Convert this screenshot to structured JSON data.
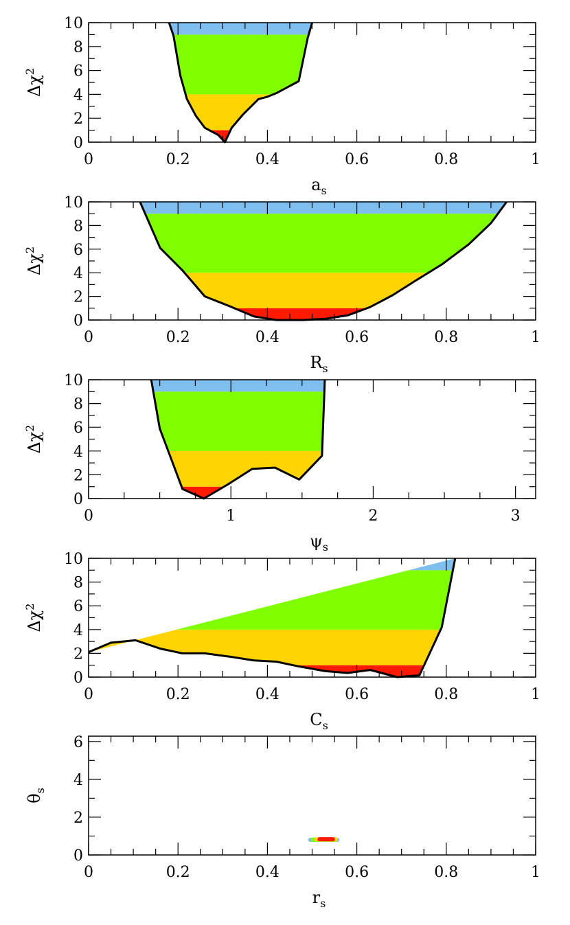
{
  "colors": {
    "band_0_1": "#ff1a00",
    "band_1_4": "#ffd400",
    "band_4_9": "#80ff00",
    "band_9_10": "#7fbfef"
  },
  "chart_data": [
    {
      "type": "area",
      "xlabel": "a_s",
      "xlabel_main": "a",
      "xlabel_sub": "s",
      "ylabel": "Δχ²",
      "ylabel_main": "Δχ",
      "ylabel_sup": "2",
      "xlim": [
        0,
        1
      ],
      "ylim": [
        0,
        10
      ],
      "xticks": [
        0,
        0.2,
        0.4,
        0.6,
        0.8,
        1
      ],
      "xtick_labels": [
        "0",
        "0.2",
        "0.4",
        "0.6",
        "0.8",
        "1"
      ],
      "yticks": [
        0,
        2,
        4,
        6,
        8,
        10
      ],
      "ytick_labels": [
        "0",
        "2",
        "4",
        "6",
        "8",
        "10"
      ],
      "bands": [
        1,
        4,
        9,
        10
      ],
      "curve": {
        "x": [
          0.18,
          0.19,
          0.205,
          0.22,
          0.24,
          0.26,
          0.29,
          0.305,
          0.32,
          0.345,
          0.38,
          0.4,
          0.42,
          0.47,
          0.49,
          0.5
        ],
        "y": [
          10,
          8.9,
          5.6,
          3.6,
          2.2,
          1.2,
          0.6,
          0.0,
          1.2,
          2.3,
          3.6,
          3.8,
          4.1,
          5.1,
          8.7,
          10
        ]
      }
    },
    {
      "type": "area",
      "xlabel": "R_s",
      "xlabel_main": "R",
      "xlabel_sub": "s",
      "ylabel": "Δχ²",
      "ylabel_main": "Δχ",
      "ylabel_sup": "2",
      "xlim": [
        0,
        1
      ],
      "ylim": [
        0,
        10
      ],
      "xticks": [
        0,
        0.2,
        0.4,
        0.6,
        0.8,
        1
      ],
      "xtick_labels": [
        "0",
        "0.2",
        "0.4",
        "0.6",
        "0.8",
        "1"
      ],
      "yticks": [
        0,
        2,
        4,
        6,
        8,
        10
      ],
      "ytick_labels": [
        "0",
        "2",
        "4",
        "6",
        "8",
        "10"
      ],
      "bands": [
        1,
        4,
        9,
        10
      ],
      "curve": {
        "x": [
          0.115,
          0.16,
          0.21,
          0.26,
          0.32,
          0.37,
          0.42,
          0.48,
          0.53,
          0.58,
          0.63,
          0.68,
          0.73,
          0.79,
          0.85,
          0.9,
          0.935
        ],
        "y": [
          10,
          6.1,
          4.2,
          2.0,
          1.1,
          0.3,
          0.0,
          0.0,
          0.1,
          0.4,
          1.1,
          2.1,
          3.3,
          4.7,
          6.4,
          8.2,
          10
        ]
      }
    },
    {
      "type": "area",
      "xlabel": "ψ_s",
      "xlabel_main": "ψ",
      "xlabel_sub": "s",
      "ylabel": "Δχ²",
      "ylabel_main": "Δχ",
      "ylabel_sup": "2",
      "xlim": [
        0,
        3.1416
      ],
      "ylim": [
        0,
        10
      ],
      "xticks": [
        0,
        1,
        2,
        3
      ],
      "xtick_labels": [
        "0",
        "1",
        "2",
        "3"
      ],
      "yticks": [
        0,
        2,
        4,
        6,
        8,
        10
      ],
      "ytick_labels": [
        "0",
        "2",
        "4",
        "6",
        "8",
        "10"
      ],
      "bands": [
        1,
        4,
        9,
        10
      ],
      "curve": {
        "x": [
          0.44,
          0.5,
          0.66,
          0.81,
          0.98,
          1.15,
          1.31,
          1.48,
          1.64,
          1.66
        ],
        "y": [
          10,
          5.9,
          0.8,
          0.0,
          1.2,
          2.5,
          2.6,
          1.6,
          3.6,
          10
        ]
      }
    },
    {
      "type": "area",
      "xlabel": "C_s",
      "xlabel_main": "C",
      "xlabel_sub": "s",
      "ylabel": "Δχ²",
      "ylabel_main": "Δχ",
      "ylabel_sup": "2",
      "xlim": [
        0,
        1
      ],
      "ylim": [
        0,
        10
      ],
      "xticks": [
        0,
        0.2,
        0.4,
        0.6,
        0.8,
        1
      ],
      "xtick_labels": [
        "0",
        "0.2",
        "0.4",
        "0.6",
        "0.8",
        "1"
      ],
      "yticks": [
        0,
        2,
        4,
        6,
        8,
        10
      ],
      "ytick_labels": [
        "0",
        "2",
        "4",
        "6",
        "8",
        "10"
      ],
      "bands": [
        1,
        4,
        9,
        10
      ],
      "curve": {
        "x": [
          0.0,
          0.05,
          0.105,
          0.16,
          0.21,
          0.26,
          0.32,
          0.37,
          0.42,
          0.47,
          0.53,
          0.58,
          0.63,
          0.69,
          0.74,
          0.79,
          0.82
        ],
        "y": [
          2.1,
          2.9,
          3.1,
          2.4,
          2.0,
          2.0,
          1.7,
          1.4,
          1.3,
          0.9,
          0.5,
          0.35,
          0.6,
          0.0,
          0.15,
          4.2,
          10
        ]
      }
    },
    {
      "type": "scatter",
      "xlabel": "r_s",
      "xlabel_main": "r",
      "xlabel_sub": "s",
      "ylabel": "θ_s",
      "ylabel_main": "θ",
      "ylabel_sub": "s",
      "xlim": [
        0,
        1
      ],
      "ylim": [
        0,
        6.2832
      ],
      "xticks": [
        0,
        0.2,
        0.4,
        0.6,
        0.8,
        1
      ],
      "xtick_labels": [
        "0",
        "0.2",
        "0.4",
        "0.6",
        "0.8",
        "1"
      ],
      "yticks": [
        0,
        2,
        4,
        6
      ],
      "ytick_labels": [
        "0",
        "2",
        "4",
        "6"
      ],
      "clusters": [
        {
          "level": "9-10",
          "x_range": [
            0.491,
            0.561
          ],
          "y": 0.8,
          "thickness": 0.22
        },
        {
          "level": "4-9",
          "x_range": [
            0.497,
            0.557
          ],
          "y": 0.81,
          "thickness": 0.22
        },
        {
          "level": "1-4",
          "x_range": [
            0.505,
            0.557
          ],
          "y": 0.82,
          "thickness": 0.22
        },
        {
          "level": "0-1",
          "x_range": [
            0.512,
            0.551
          ],
          "y": 0.83,
          "thickness": 0.22
        }
      ]
    }
  ]
}
